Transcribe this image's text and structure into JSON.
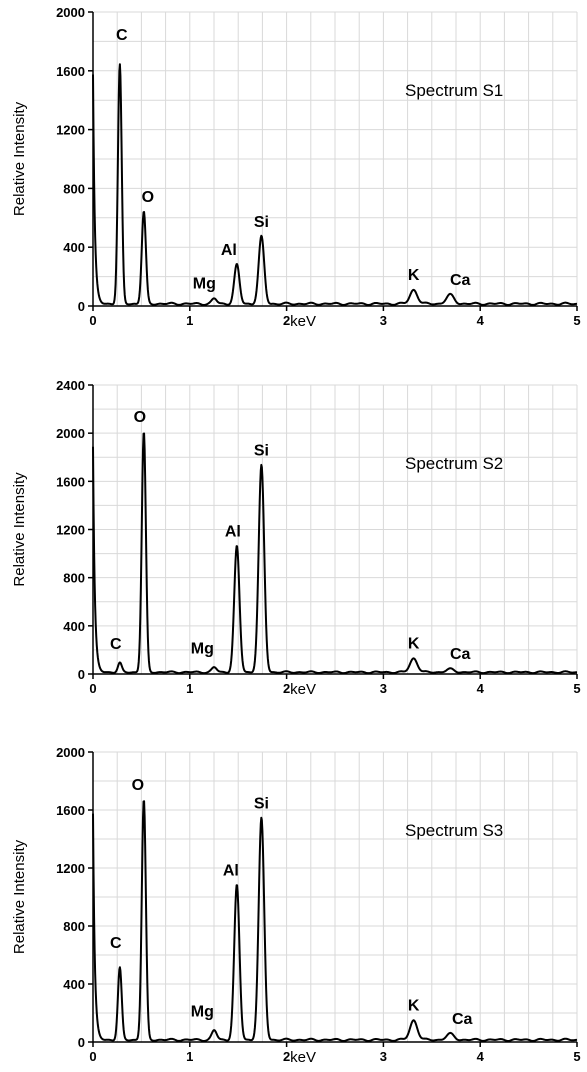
{
  "chart_data": [
    {
      "type": "line",
      "title": "Spectrum S1",
      "xlabel": "keV",
      "ylabel": "Relative Intensity",
      "xlim": [
        0,
        5
      ],
      "ylim": [
        0,
        2000
      ],
      "xticks": [
        "0",
        "1",
        "2",
        "3",
        "4",
        "5"
      ],
      "yticks": [
        "0",
        "400",
        "800",
        "1200",
        "1600",
        "2000"
      ],
      "grid": true,
      "peaks": [
        {
          "label": "C",
          "x": 0.277,
          "y": 1640
        },
        {
          "label": "O",
          "x": 0.525,
          "y": 640
        },
        {
          "label": "Mg",
          "x": 1.253,
          "y": 50
        },
        {
          "label": "Al",
          "x": 1.486,
          "y": 280
        },
        {
          "label": "Si",
          "x": 1.74,
          "y": 470
        },
        {
          "label": "K",
          "x": 3.313,
          "y": 110
        },
        {
          "label": "Ca",
          "x": 3.69,
          "y": 75
        }
      ]
    },
    {
      "type": "line",
      "title": "Spectrum S2",
      "xlabel": "keV",
      "ylabel": "Relative Intensity",
      "xlim": [
        0,
        5
      ],
      "ylim": [
        0,
        2400
      ],
      "xticks": [
        "0",
        "1",
        "2",
        "3",
        "4",
        "5"
      ],
      "yticks": [
        "0",
        "400",
        "800",
        "1200",
        "1600",
        "2000",
        "2400"
      ],
      "grid": true,
      "peaks": [
        {
          "label": "C",
          "x": 0.277,
          "y": 90
        },
        {
          "label": "O",
          "x": 0.525,
          "y": 2010
        },
        {
          "label": "Mg",
          "x": 1.253,
          "y": 55
        },
        {
          "label": "Al",
          "x": 1.486,
          "y": 1060
        },
        {
          "label": "Si",
          "x": 1.74,
          "y": 1730
        },
        {
          "label": "K",
          "x": 3.313,
          "y": 130
        },
        {
          "label": "Ca",
          "x": 3.69,
          "y": 40
        }
      ]
    },
    {
      "type": "line",
      "title": "Spectrum S3",
      "xlabel": "keV",
      "ylabel": "Relative Intensity",
      "xlim": [
        0,
        5
      ],
      "ylim": [
        0,
        2000
      ],
      "xticks": [
        "0",
        "1",
        "2",
        "3",
        "4",
        "5"
      ],
      "yticks": [
        "0",
        "400",
        "800",
        "1200",
        "1600",
        "2000"
      ],
      "grid": true,
      "peaks": [
        {
          "label": "C",
          "x": 0.277,
          "y": 510
        },
        {
          "label": "O",
          "x": 0.525,
          "y": 1670
        },
        {
          "label": "Mg",
          "x": 1.253,
          "y": 80
        },
        {
          "label": "Al",
          "x": 1.486,
          "y": 1080
        },
        {
          "label": "Si",
          "x": 1.74,
          "y": 1540
        },
        {
          "label": "K",
          "x": 3.313,
          "y": 150
        },
        {
          "label": "Ca",
          "x": 3.69,
          "y": 55
        }
      ]
    }
  ]
}
